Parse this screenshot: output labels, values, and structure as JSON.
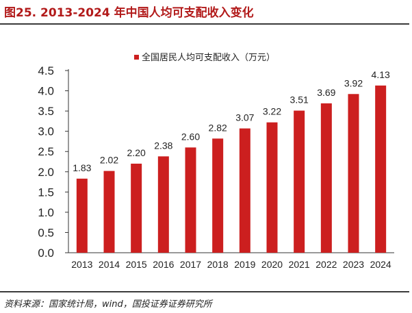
{
  "header": {
    "title": "图25. 2013-2024 年中国人均可支配收入变化"
  },
  "footer": {
    "source": "资料来源：国家统计局，wind，国投证券证券研究所"
  },
  "colors": {
    "bar": "#cc1f1f",
    "axis": "#333333",
    "title": "#b21a1a"
  },
  "chart_data": {
    "type": "bar",
    "categories": [
      "2013",
      "2014",
      "2015",
      "2016",
      "2017",
      "2018",
      "2019",
      "2020",
      "2021",
      "2022",
      "2023",
      "2024"
    ],
    "series": [
      {
        "name": "全国居民人均可支配收入（万元）",
        "values": [
          1.83,
          2.02,
          2.2,
          2.38,
          2.6,
          2.82,
          3.07,
          3.22,
          3.51,
          3.69,
          3.92,
          4.13
        ]
      }
    ],
    "data_labels": [
      "1.83",
      "2.02",
      "2.20",
      "2.38",
      "2.60",
      "2.82",
      "3.07",
      "3.22",
      "3.51",
      "3.69",
      "3.92",
      "4.13"
    ],
    "yticks": [
      "0.0",
      "0.5",
      "1.0",
      "1.5",
      "2.0",
      "2.5",
      "3.0",
      "3.5",
      "4.0",
      "4.5"
    ],
    "ylim": [
      0,
      4.5
    ],
    "grid": false,
    "legend": "top-center"
  }
}
